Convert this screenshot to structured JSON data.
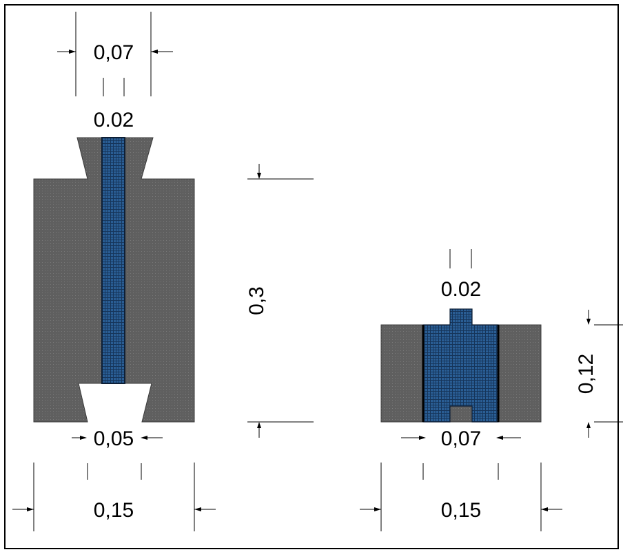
{
  "colors": {
    "shell": "#5f5f5f",
    "core": "#2a5e95",
    "grid_line": "#16355a",
    "background": "#ffffff",
    "line": "#000000"
  },
  "left_specimen": {
    "label_top_width": "0,07",
    "label_channel_width": "0.02",
    "label_height": "0,3",
    "label_bottom_opening": "0,05",
    "label_total_width": "0,15"
  },
  "right_specimen": {
    "label_tab_width": "0.02",
    "label_height": "0,12",
    "label_core_width": "0,07",
    "label_total_width": "0,15"
  }
}
